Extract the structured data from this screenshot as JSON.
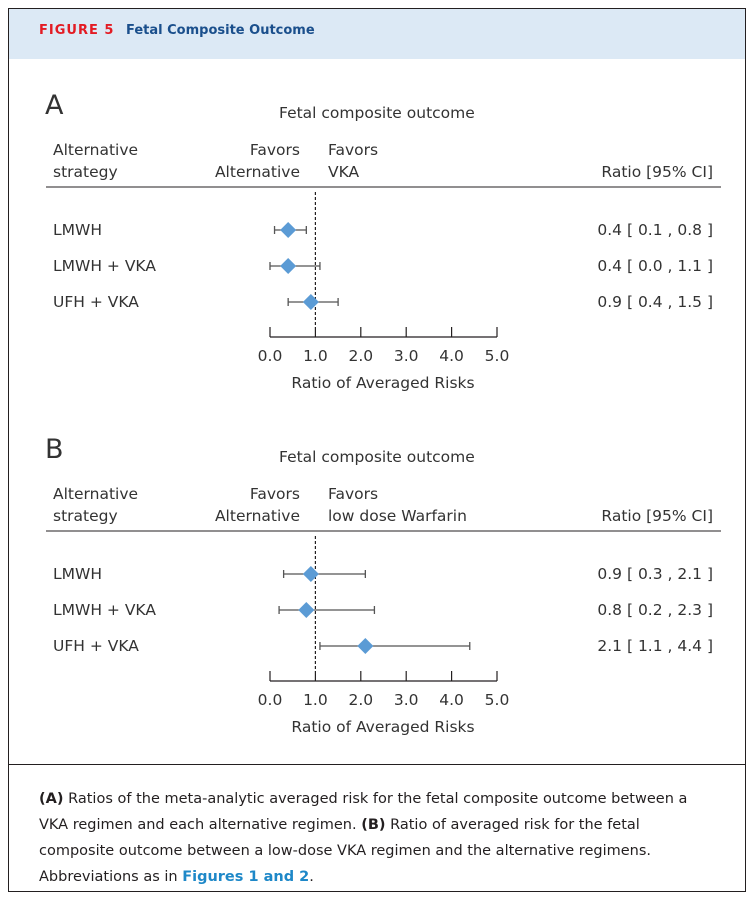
{
  "figure": {
    "label": "FIGURE 5",
    "title": "Fetal Composite Outcome"
  },
  "colors": {
    "header_bg": "#dce9f5",
    "label_red": "#e31b23",
    "title_blue": "#1a4f8c",
    "marker": "#5b9bd5",
    "link": "#1e88c8"
  },
  "chart_data": [
    {
      "type": "forest",
      "panel": "A",
      "title": "Fetal composite outcome",
      "col_header": [
        "Alternative",
        "strategy"
      ],
      "favors_left": [
        "Favors",
        "Alternative"
      ],
      "favors_right": [
        "Favors",
        "VKA"
      ],
      "ratio_header": "Ratio [95% CI]",
      "xlabel": "Ratio of Averaged Risks",
      "xlim": [
        0,
        5
      ],
      "xticks": [
        "0.0",
        "1.0",
        "2.0",
        "3.0",
        "4.0",
        "5.0"
      ],
      "reference_line": 1.0,
      "rows": [
        {
          "label": "LMWH",
          "point": 0.4,
          "lo": 0.1,
          "hi": 0.8,
          "ratio_text": "0.4 [ 0.1 , 0.8 ]"
        },
        {
          "label": "LMWH + VKA",
          "point": 0.4,
          "lo": 0.0,
          "hi": 1.1,
          "ratio_text": "0.4 [ 0.0 , 1.1 ]"
        },
        {
          "label": "UFH + VKA",
          "point": 0.9,
          "lo": 0.4,
          "hi": 1.5,
          "ratio_text": "0.9 [ 0.4 , 1.5 ]"
        }
      ]
    },
    {
      "type": "forest",
      "panel": "B",
      "title": "Fetal composite outcome",
      "col_header": [
        "Alternative",
        "strategy"
      ],
      "favors_left": [
        "Favors",
        "Alternative"
      ],
      "favors_right": [
        "Favors",
        "low dose Warfarin"
      ],
      "ratio_header": "Ratio [95% CI]",
      "xlabel": "Ratio of Averaged Risks",
      "xlim": [
        0,
        5
      ],
      "xticks": [
        "0.0",
        "1.0",
        "2.0",
        "3.0",
        "4.0",
        "5.0"
      ],
      "reference_line": 1.0,
      "rows": [
        {
          "label": "LMWH",
          "point": 0.9,
          "lo": 0.3,
          "hi": 2.1,
          "ratio_text": "0.9 [ 0.3 , 2.1 ]"
        },
        {
          "label": "LMWH + VKA",
          "point": 0.8,
          "lo": 0.2,
          "hi": 2.3,
          "ratio_text": "0.8 [ 0.2 , 2.3 ]"
        },
        {
          "label": "UFH + VKA",
          "point": 2.1,
          "lo": 1.1,
          "hi": 4.4,
          "ratio_text": "2.1 [ 1.1 , 4.4 ]"
        }
      ]
    }
  ],
  "caption": {
    "a_tag": "(A)",
    "a_text": " Ratios of the meta-analytic averaged risk for the fetal composite outcome between a VKA regimen and each alternative regimen. ",
    "b_tag": "(B)",
    "b_text": " Ratio of averaged risk for the fetal composite outcome between a low-dose VKA regimen and the alternative regimens. Abbreviations as in ",
    "link_text": "Figures 1 and 2",
    "end": "."
  }
}
